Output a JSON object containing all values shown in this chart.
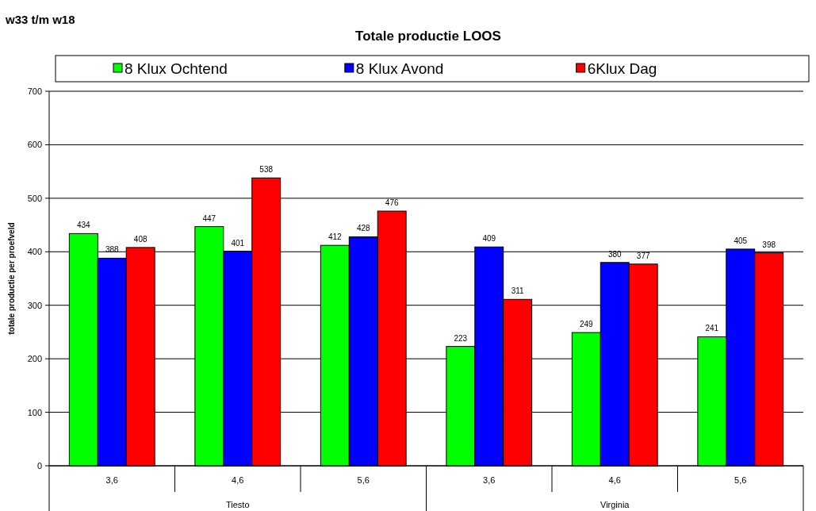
{
  "chart_data": {
    "type": "bar",
    "title": "Totale productie LOOS",
    "subtitle": "w33 t/m w18",
    "ylabel": "totale productie per proefveld",
    "categories": [
      "3,6",
      "4,6",
      "5,6",
      "3,6",
      "4,6",
      "5,6"
    ],
    "series": [
      {
        "name": "8 Klux Ochtend",
        "color": "#00ff00",
        "values": [
          434,
          447,
          412,
          223,
          249,
          241
        ]
      },
      {
        "name": "8 Klux Avond",
        "color": "#0000ff",
        "values": [
          388,
          401,
          428,
          409,
          380,
          405
        ]
      },
      {
        "name": "6Klux Dag",
        "color": "#ff0000",
        "values": [
          408,
          538,
          476,
          311,
          377,
          398
        ]
      }
    ],
    "annotations": [
      "Tiesto",
      "Virginia"
    ],
    "ylim": [
      0,
      700
    ],
    "yticks": [
      0,
      100,
      200,
      300,
      400,
      500,
      600,
      700
    ],
    "grid": "y",
    "legend": "top",
    "data_labels": true
  }
}
